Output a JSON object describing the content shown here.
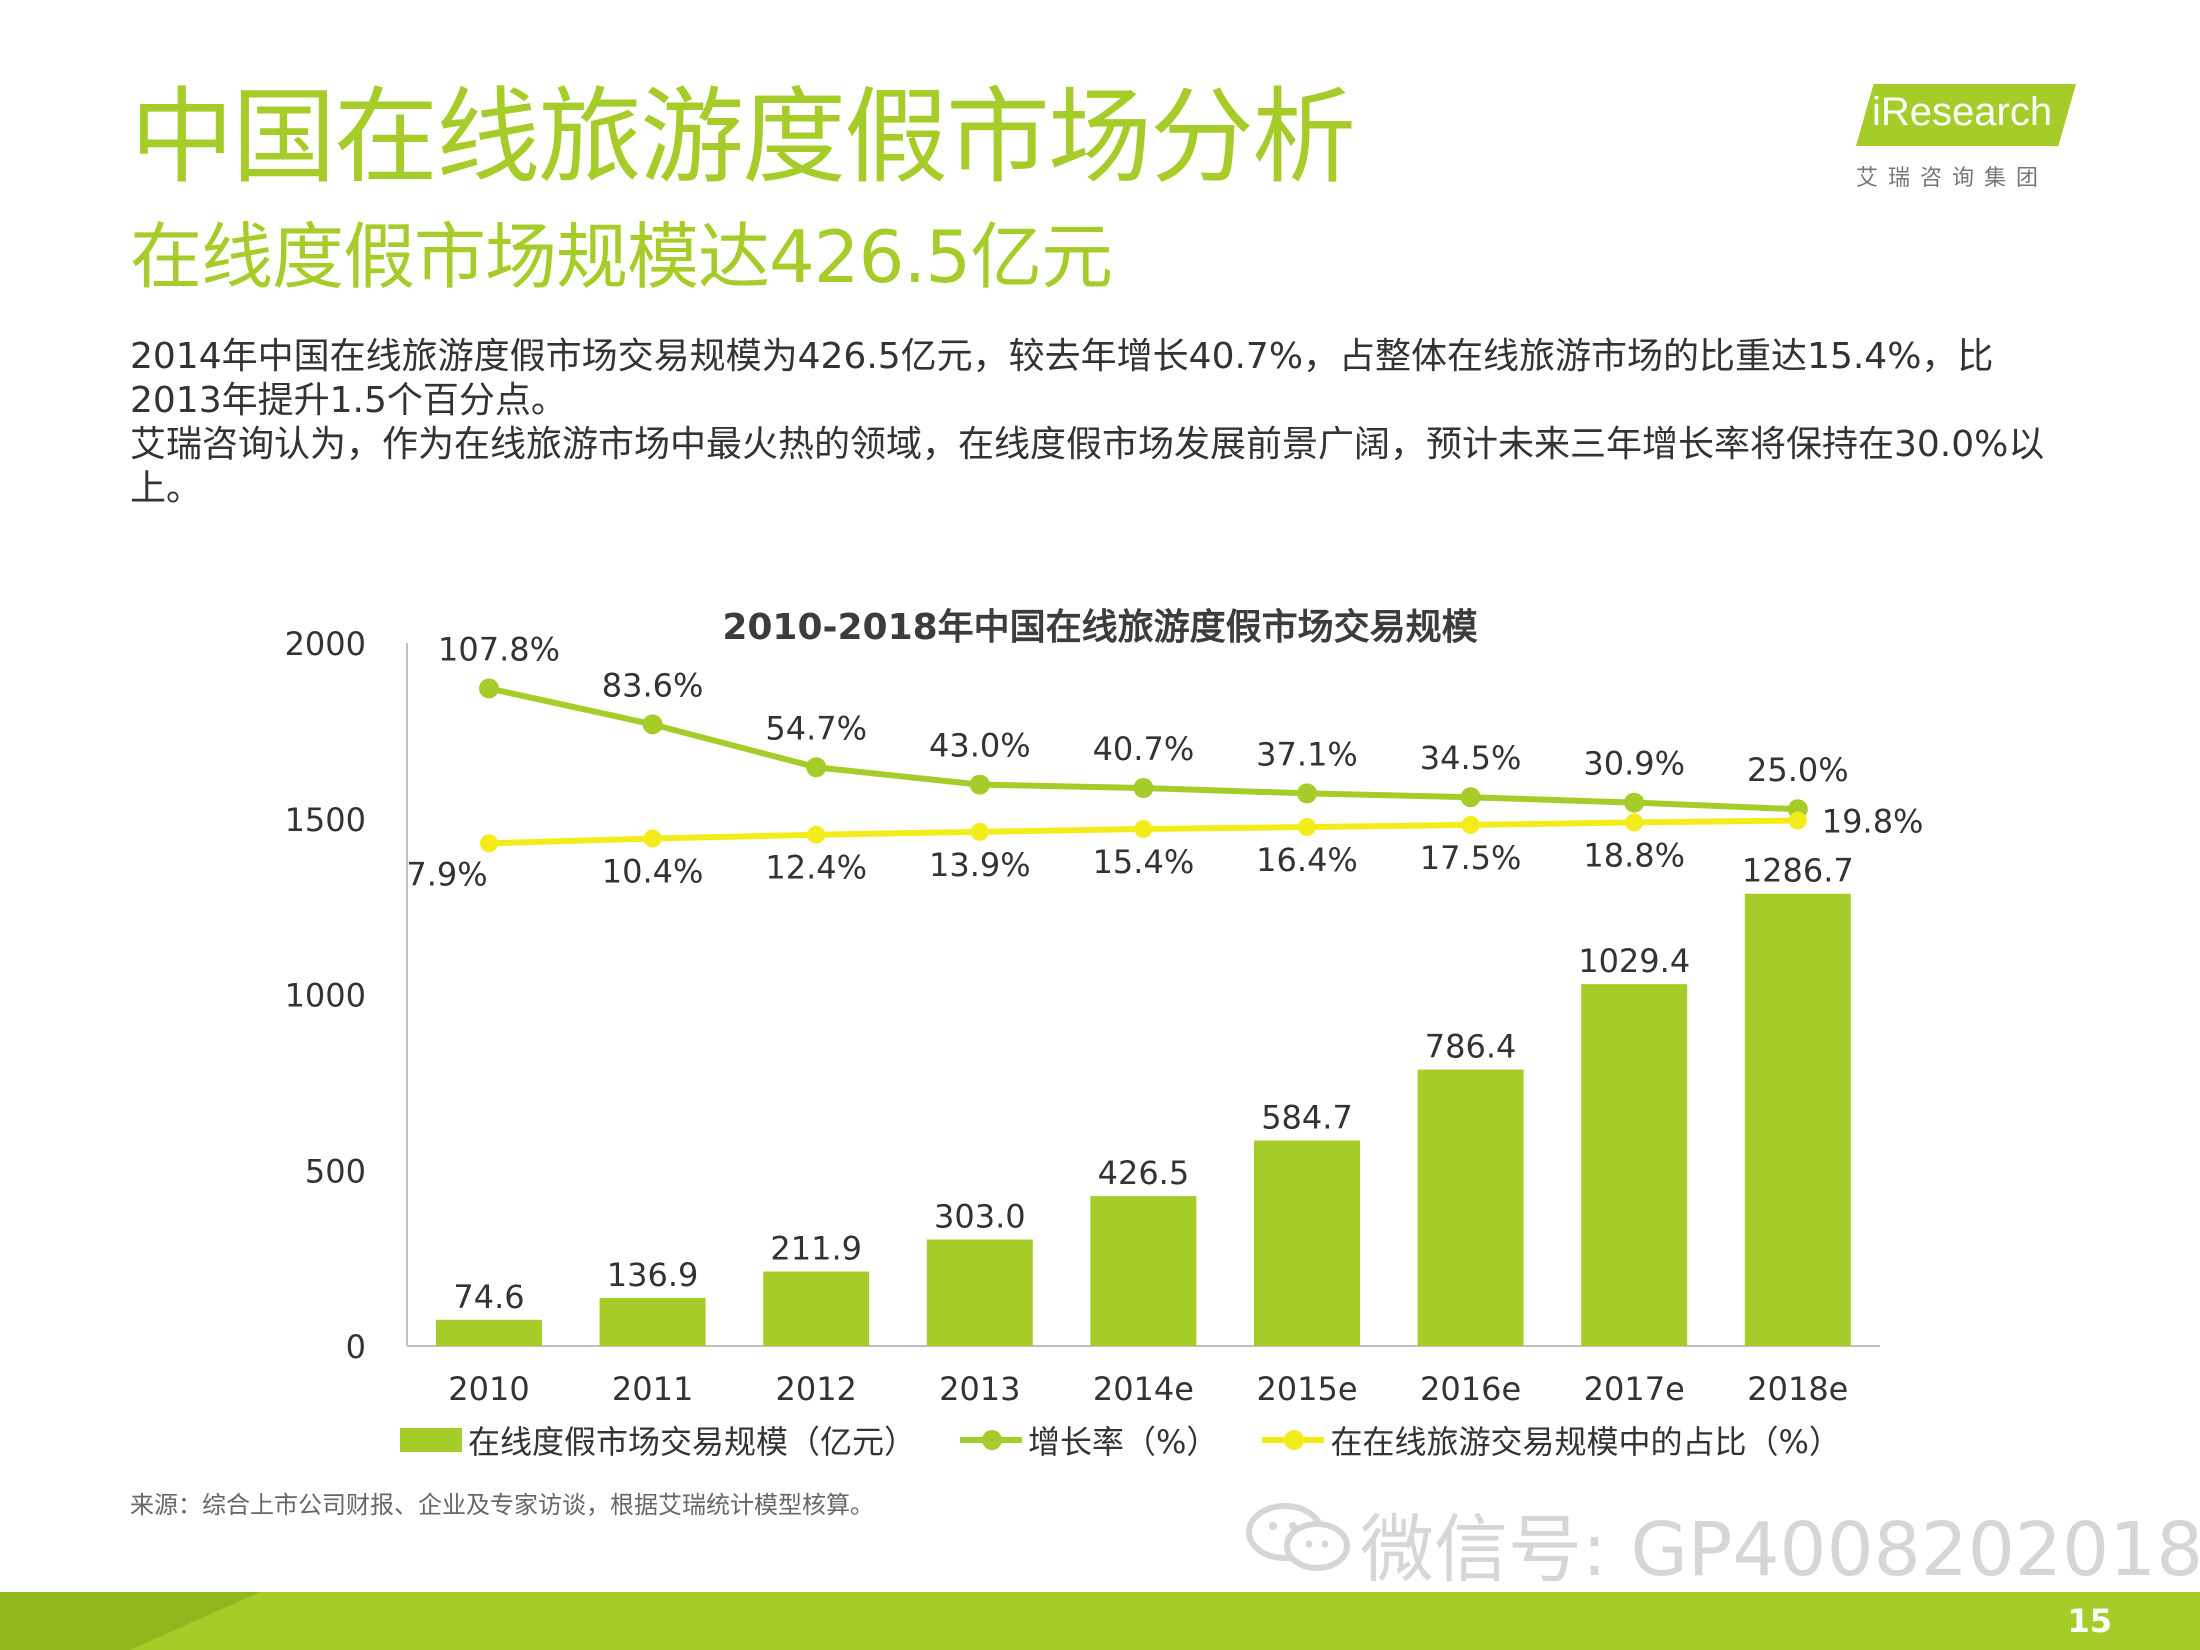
{
  "header": {
    "title": "中国在线旅游度假市场分析",
    "subtitle": "在线度假市场规模达426.5亿元"
  },
  "logo": {
    "text": "iResearch",
    "sub": "艾瑞咨询集团"
  },
  "body": {
    "para1": "2014年中国在线旅游度假市场交易规模为426.5亿元，较去年增长40.7%，占整体在线旅游市场的比重达15.4%，比2013年提升1.5个百分点。",
    "para2": "艾瑞咨询认为，作为在线旅游市场中最火热的领域，在线度假市场发展前景广阔，预计未来三年增长率将保持在30.0%以上。"
  },
  "source": "来源：综合上市公司财报、企业及专家访谈，根据艾瑞统计模型核算。",
  "watermark": "微信号: GP4008202018",
  "page_number": "15",
  "colors": {
    "accent": "#a6cc2a",
    "line_share": "#f4ec1a",
    "text": "#333333"
  },
  "chart_data": {
    "type": "bar",
    "title": "2010-2018年中国在线旅游度假市场交易规模",
    "categories": [
      "2010",
      "2011",
      "2012",
      "2013",
      "2014e",
      "2015e",
      "2016e",
      "2017e",
      "2018e"
    ],
    "ylim": [
      0,
      2000
    ],
    "yticks": [
      "0",
      "500",
      "1000",
      "1500",
      "2000"
    ],
    "series": [
      {
        "name": "在线度假市场交易规模（亿元）",
        "kind": "bar",
        "values": [
          74.6,
          136.9,
          211.9,
          303.0,
          426.5,
          584.7,
          786.4,
          1029.4,
          1286.7
        ],
        "labels": [
          "74.6",
          "136.9",
          "211.9",
          "303.0",
          "426.5",
          "584.7",
          "786.4",
          "1029.4",
          "1286.7"
        ]
      },
      {
        "name": "增长率（%）",
        "kind": "line",
        "values": [
          107.8,
          83.6,
          54.7,
          43.0,
          40.7,
          37.1,
          34.5,
          30.9,
          25.0
        ],
        "labels": [
          "107.8%",
          "83.6%",
          "54.7%",
          "43.0%",
          "40.7%",
          "37.1%",
          "34.5%",
          "30.9%",
          "25.0%"
        ]
      },
      {
        "name": "在在线旅游交易规模中的占比（%）",
        "kind": "line",
        "values": [
          7.9,
          10.4,
          12.4,
          13.9,
          15.4,
          16.4,
          17.5,
          18.8,
          19.8
        ],
        "labels": [
          "7.9%",
          "10.4%",
          "12.4%",
          "13.9%",
          "15.4%",
          "16.4%",
          "17.5%",
          "18.8%",
          "19.8%"
        ]
      }
    ],
    "legend": {
      "bar": "在线度假市场交易规模（亿元）",
      "growth": "增长率（%）",
      "share": "在在线旅游交易规模中的占比（%）"
    }
  }
}
